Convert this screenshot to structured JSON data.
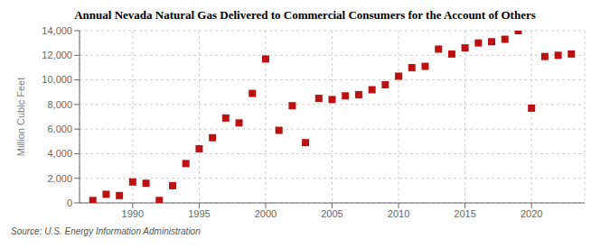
{
  "chart_data": {
    "type": "scatter",
    "title": "Annual Nevada Natural Gas Delivered to Commercial Consumers for the Account of Others",
    "ylabel": "Million Cubic Feet",
    "annotation": "Source: U.S. Energy Information Administration",
    "x": [
      1987,
      1988,
      1989,
      1990,
      1991,
      1992,
      1993,
      1994,
      1995,
      1996,
      1997,
      1998,
      1999,
      2000,
      2001,
      2002,
      2003,
      2004,
      2005,
      2006,
      2007,
      2008,
      2009,
      2010,
      2011,
      2012,
      2013,
      2014,
      2015,
      2016,
      2017,
      2018,
      2019,
      2020,
      2021,
      2022,
      2023
    ],
    "values": [
      200,
      700,
      600,
      1700,
      1600,
      200,
      1400,
      3200,
      4400,
      5300,
      6900,
      6500,
      8900,
      11700,
      5900,
      7900,
      4900,
      8500,
      8400,
      8700,
      8800,
      9200,
      9600,
      10300,
      11000,
      11100,
      12500,
      12100,
      12600,
      13000,
      13100,
      13300,
      14000,
      7700,
      11900,
      12000,
      12100
    ],
    "color": "#bb1111",
    "marker": "square",
    "grid": true,
    "xlim": [
      1986,
      2024
    ],
    "xticks": [
      1990,
      1995,
      2000,
      2005,
      2010,
      2015,
      2020
    ],
    "ylim": [
      0,
      14000
    ],
    "yticks": [
      0,
      {
        "value": 2000,
        "label": "2,000"
      },
      {
        "value": 4000,
        "label": "4,000"
      },
      {
        "value": 6000,
        "label": "6,000"
      },
      {
        "value": 8000,
        "label": "8,000"
      },
      {
        "value": 10000,
        "label": "10,000"
      },
      {
        "value": 12000,
        "label": "12,000"
      },
      {
        "value": 14000,
        "label": "14,000"
      }
    ]
  }
}
